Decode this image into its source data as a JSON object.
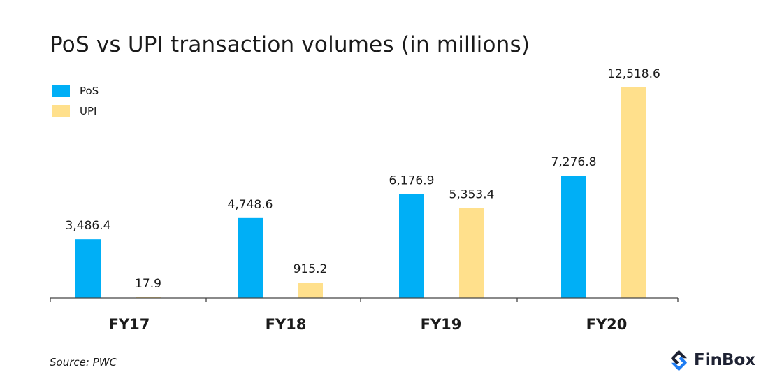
{
  "chart_data": {
    "type": "bar",
    "title": "PoS vs UPI transaction volumes (in millions)",
    "categories": [
      "FY17",
      "FY18",
      "FY19",
      "FY20"
    ],
    "series": [
      {
        "name": "PoS",
        "color": "#00AFF6",
        "values": [
          3486.4,
          4748.6,
          6176.9,
          7276.8
        ],
        "labels": [
          "3,486.4",
          "4,748.6",
          "6,176.9",
          "7,276.8"
        ]
      },
      {
        "name": "UPI",
        "color": "#FFE08C",
        "values": [
          17.9,
          915.2,
          5353.4,
          12518.6
        ],
        "labels": [
          "17.9",
          "915.2",
          "5,353.4",
          "12,518.6"
        ]
      }
    ],
    "legend_position": "top-left",
    "grid": false,
    "ylim": [
      0,
      13500
    ]
  },
  "source": "Source: PWC",
  "brand": {
    "name": "FinBox",
    "logo_icon": "finbox-logo-icon",
    "colors": {
      "primary": "#1E2233",
      "accent": "#1F7CF2"
    }
  }
}
